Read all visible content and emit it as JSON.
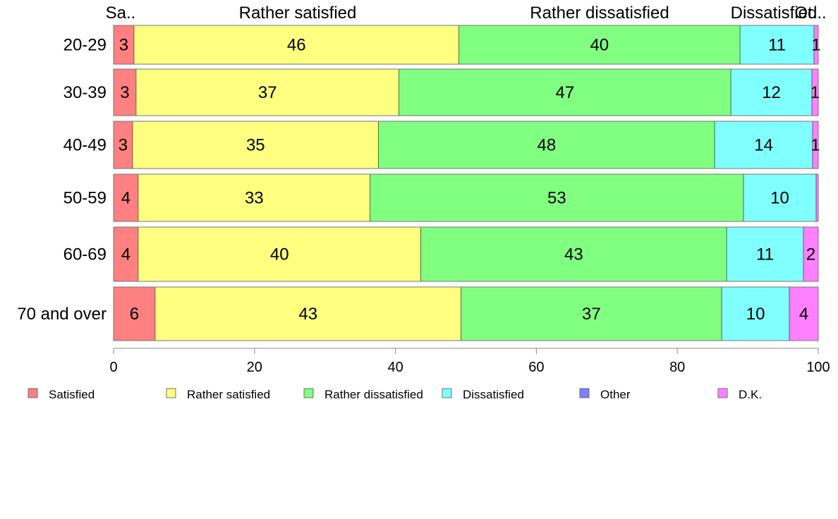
{
  "chart_data": {
    "type": "bar",
    "orientation": "horizontal",
    "stacked": true,
    "categories": [
      "20-29",
      "30-39",
      "40-49",
      "50-59",
      "60-69",
      "70 and over"
    ],
    "series": [
      {
        "name": "Satisfied",
        "color": "#ff8080",
        "values": [
          2.9,
          3.2,
          2.7,
          3.5,
          3.5,
          5.9
        ]
      },
      {
        "name": "Rather satisfied",
        "color": "#ffff80",
        "values": [
          46.1,
          37.3,
          34.9,
          32.9,
          40.1,
          43.4
        ]
      },
      {
        "name": "Rather dissatisfied",
        "color": "#80ff80",
        "values": [
          39.9,
          47.1,
          47.7,
          53.0,
          43.4,
          37.0
        ]
      },
      {
        "name": "Dissatisfied",
        "color": "#80ffff",
        "values": [
          10.5,
          11.5,
          13.9,
          10.3,
          10.9,
          9.6
        ]
      },
      {
        "name": "Other",
        "color": "#8080ff",
        "values": [
          0,
          0,
          0,
          0,
          0,
          0
        ]
      },
      {
        "name": "D.K.",
        "color": "#ff80ff",
        "values": [
          0.6,
          0.9,
          0.8,
          0.3,
          2.1,
          4.1
        ]
      }
    ],
    "segment_labels": [
      [
        "3",
        "46",
        "40",
        "11",
        "",
        "1"
      ],
      [
        "3",
        "37",
        "47",
        "12",
        "",
        "1"
      ],
      [
        "3",
        "35",
        "48",
        "14",
        "",
        "1"
      ],
      [
        "4",
        "33",
        "53",
        "10",
        "",
        ""
      ],
      [
        "4",
        "40",
        "43",
        "11",
        "",
        "2"
      ],
      [
        "6",
        "43",
        "37",
        "10",
        "",
        "4"
      ]
    ],
    "top_labels": [
      "Sa..",
      "Rather satisfied",
      "Rather dissatisfied",
      "Dissatisfied",
      "Ot..."
    ],
    "xlim": [
      0,
      100
    ],
    "xticks": [
      "0",
      "20",
      "40",
      "60",
      "80",
      "100"
    ],
    "legend_position": "bottom",
    "grid": false
  }
}
